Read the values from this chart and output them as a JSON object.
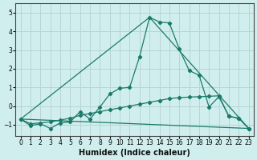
{
  "xlabel": "Humidex (Indice chaleur)",
  "background_color": "#d1eeee",
  "grid_color": "#b8d4d4",
  "line_color": "#1a7a6a",
  "xlim": [
    -0.5,
    23.5
  ],
  "ylim": [
    -1.6,
    5.5
  ],
  "yticks": [
    -1,
    0,
    1,
    2,
    3,
    4,
    5
  ],
  "xticks": [
    0,
    1,
    2,
    3,
    4,
    5,
    6,
    7,
    8,
    9,
    10,
    11,
    12,
    13,
    14,
    15,
    16,
    17,
    18,
    19,
    20,
    21,
    22,
    23
  ],
  "series1": [
    [
      0,
      -0.7
    ],
    [
      1,
      -1.05
    ],
    [
      2,
      -0.95
    ],
    [
      3,
      -1.2
    ],
    [
      4,
      -0.9
    ],
    [
      5,
      -0.85
    ],
    [
      6,
      -0.3
    ],
    [
      7,
      -0.7
    ],
    [
      8,
      -0.05
    ],
    [
      9,
      0.65
    ],
    [
      10,
      0.95
    ],
    [
      11,
      1.0
    ],
    [
      12,
      2.65
    ],
    [
      13,
      4.75
    ],
    [
      14,
      4.5
    ],
    [
      15,
      4.45
    ],
    [
      16,
      3.05
    ],
    [
      17,
      1.9
    ],
    [
      18,
      1.65
    ],
    [
      19,
      -0.05
    ],
    [
      20,
      0.5
    ],
    [
      21,
      -0.55
    ],
    [
      22,
      -0.65
    ],
    [
      23,
      -1.2
    ]
  ],
  "series2": [
    [
      0,
      -0.7
    ],
    [
      23,
      -1.2
    ]
  ],
  "series3": [
    [
      0,
      -0.7
    ],
    [
      13,
      4.75
    ],
    [
      23,
      -1.2
    ]
  ],
  "series4": [
    [
      0,
      -0.7
    ],
    [
      1,
      -0.95
    ],
    [
      2,
      -0.9
    ],
    [
      3,
      -0.85
    ],
    [
      4,
      -0.75
    ],
    [
      5,
      -0.65
    ],
    [
      6,
      -0.5
    ],
    [
      7,
      -0.4
    ],
    [
      8,
      -0.3
    ],
    [
      9,
      -0.2
    ],
    [
      10,
      -0.1
    ],
    [
      11,
      0.0
    ],
    [
      12,
      0.1
    ],
    [
      13,
      0.2
    ],
    [
      14,
      0.3
    ],
    [
      15,
      0.4
    ],
    [
      16,
      0.45
    ],
    [
      17,
      0.48
    ],
    [
      18,
      0.5
    ],
    [
      19,
      0.52
    ],
    [
      20,
      0.55
    ],
    [
      21,
      -0.55
    ],
    [
      22,
      -0.65
    ],
    [
      23,
      -1.2
    ]
  ]
}
